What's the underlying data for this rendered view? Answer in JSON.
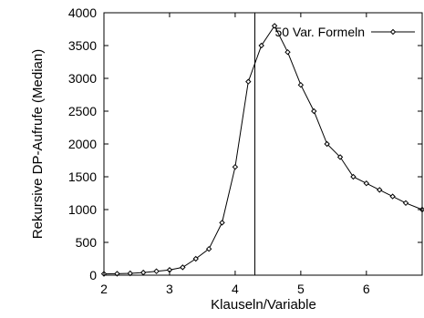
{
  "chart_data": {
    "type": "line",
    "title": "",
    "xlabel": "Klauseln/Variable",
    "ylabel": "Rekursive DP-Aufrufe (Median)",
    "xlim": [
      2,
      6.85
    ],
    "ylim": [
      0,
      4000
    ],
    "x_ticks": [
      2,
      3,
      4,
      5,
      6
    ],
    "y_ticks": [
      0,
      500,
      1000,
      1500,
      2000,
      2500,
      3000,
      3500,
      4000
    ],
    "grid": false,
    "legend_position": "top-right",
    "vertical_line_x": 4.3,
    "series": [
      {
        "name": "50 Var. Formeln",
        "marker": "diamond",
        "color": "#000000",
        "x": [
          2.0,
          2.2,
          2.4,
          2.6,
          2.8,
          3.0,
          3.2,
          3.4,
          3.6,
          3.8,
          4.0,
          4.2,
          4.4,
          4.6,
          4.8,
          5.0,
          5.2,
          5.4,
          5.6,
          5.8,
          6.0,
          6.2,
          6.4,
          6.6,
          6.85
        ],
        "y": [
          20,
          22,
          28,
          40,
          60,
          80,
          120,
          250,
          400,
          800,
          1650,
          2950,
          3500,
          3800,
          3400,
          2900,
          2500,
          2000,
          1800,
          1500,
          1400,
          1300,
          1200,
          1100,
          1000
        ]
      }
    ]
  }
}
